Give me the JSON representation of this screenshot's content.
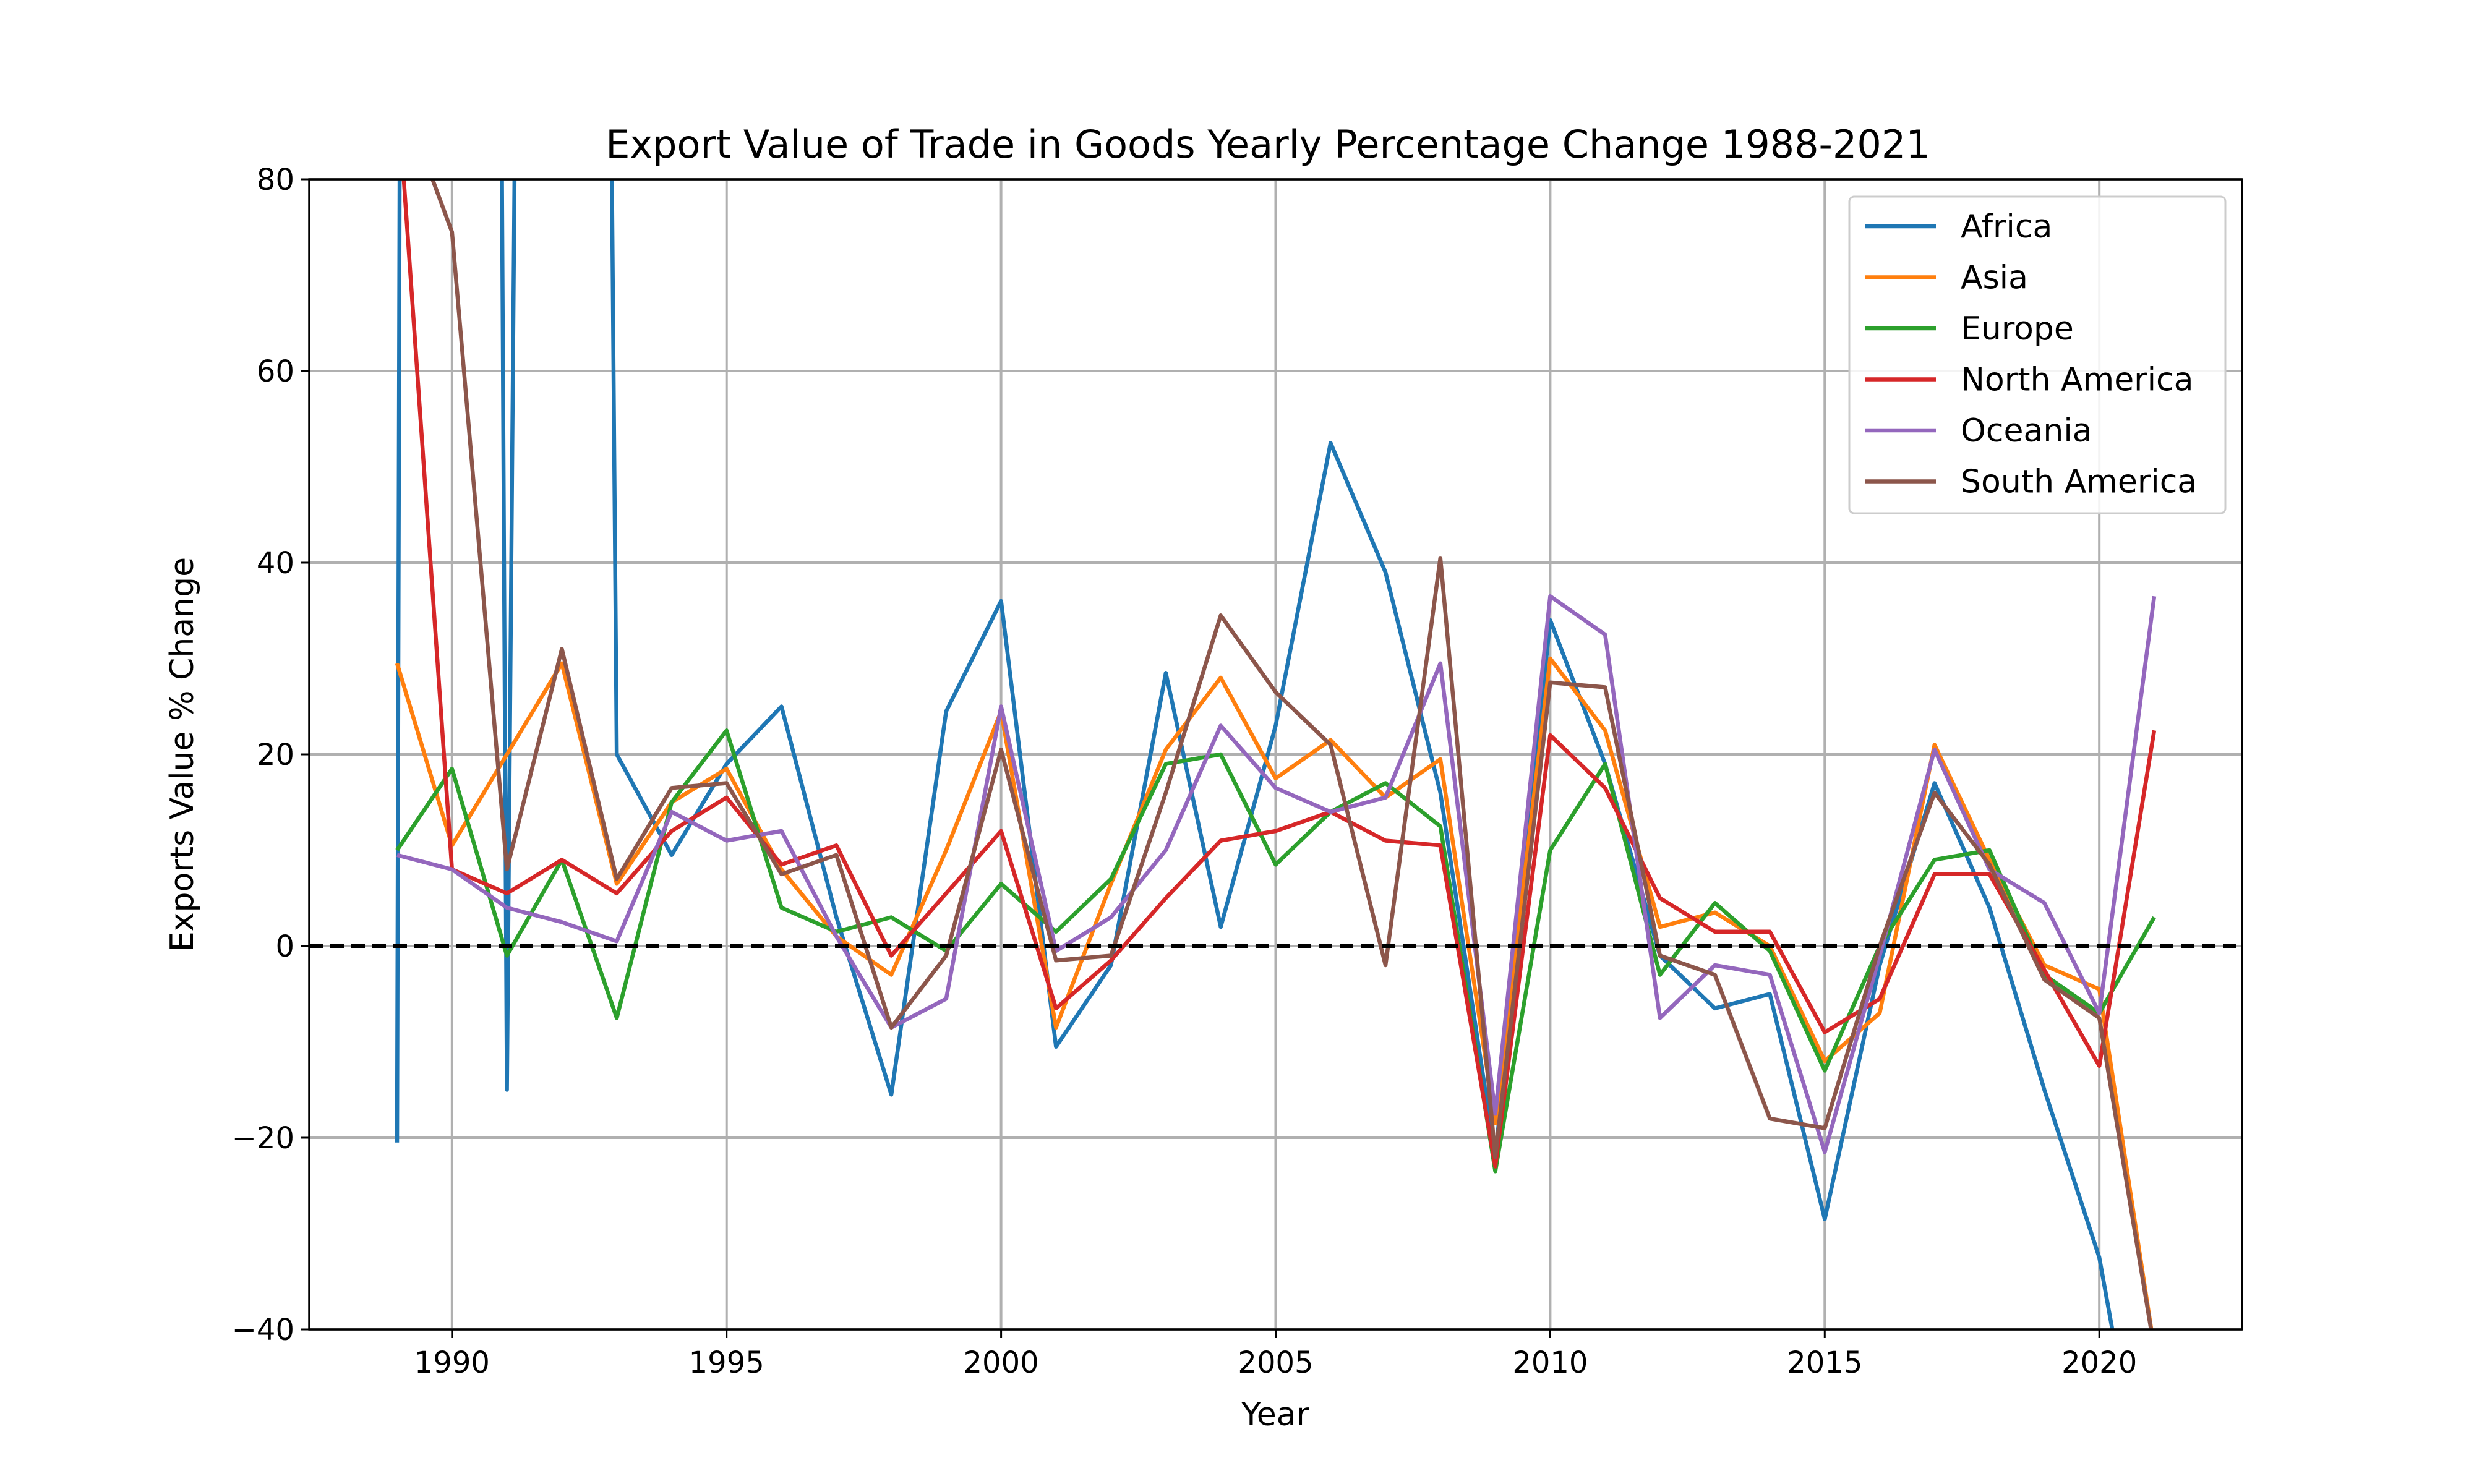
{
  "chart_data": {
    "type": "line",
    "title": "Export Value of Trade in Goods Yearly Percentage Change 1988-2021",
    "xlabel": "Year",
    "ylabel": "Exports Value % Change",
    "xlim": [
      1987.4,
      2022.6
    ],
    "ylim": [
      -40,
      80
    ],
    "xticks": [
      1990,
      1995,
      2000,
      2005,
      2010,
      2015,
      2020
    ],
    "yticks": [
      -40,
      -20,
      0,
      20,
      40,
      60,
      80
    ],
    "ytick_labels": [
      "−40",
      "−20",
      "0",
      "20",
      "40",
      "60",
      "80"
    ],
    "grid": true,
    "legend_position": "upper right",
    "reference_line": {
      "y": 0,
      "style": "dashed",
      "color": "#000000"
    },
    "x": [
      1989,
      1990,
      1991,
      1992,
      1993,
      1994,
      1995,
      1996,
      1997,
      1998,
      1999,
      2000,
      2001,
      2002,
      2003,
      2004,
      2005,
      2006,
      2007,
      2008,
      2009,
      2010,
      2011,
      2012,
      2013,
      2014,
      2015,
      2016,
      2017,
      2018,
      2019,
      2020,
      2021
    ],
    "series": [
      {
        "name": "Africa",
        "color": "#1f77b4",
        "x": [
          1989,
          1989.05,
          1990.9,
          1991.0,
          1991.15,
          1991.4,
          1992.7,
          1992.9,
          1993,
          1994,
          1995,
          1996,
          1997,
          1998,
          1999,
          2000,
          2001,
          2002,
          2003,
          2004,
          2005,
          2006,
          2007,
          2008,
          2009,
          2010,
          2011,
          2012,
          2013,
          2014,
          2015,
          2016,
          2017,
          2018,
          2019,
          2020,
          2020.3
        ],
        "values": [
          -20.5,
          90,
          90,
          -15,
          88,
          90,
          90,
          88,
          20,
          9.5,
          19,
          25,
          3,
          -15.5,
          24.5,
          36,
          -10.5,
          -2,
          28.5,
          2,
          23,
          52.5,
          39,
          16,
          -22,
          34,
          19,
          -1,
          -6.5,
          -5,
          -28.5,
          -2,
          17,
          4,
          -15,
          -32.5,
          -42
        ]
      },
      {
        "name": "Asia",
        "color": "#ff7f0e",
        "values": [
          29.5,
          10.5,
          20,
          29.5,
          6.5,
          15,
          18.5,
          8,
          1,
          -3,
          10,
          24.5,
          -8.5,
          6.5,
          20.5,
          28,
          17.5,
          21.5,
          15.5,
          19.5,
          -18.5,
          30,
          22.5,
          2,
          3.5,
          0,
          -12,
          -7,
          21,
          9,
          -2,
          -4.5,
          -42
        ]
      },
      {
        "name": "Europe",
        "color": "#2ca02c",
        "values": [
          10,
          18.5,
          -1,
          9,
          -7.5,
          15,
          22.5,
          4,
          1.5,
          3,
          -0.5,
          6.5,
          1.5,
          7,
          19,
          20,
          8.5,
          14,
          17,
          12.5,
          -23.5,
          10,
          19,
          -3,
          4.5,
          -0.5,
          -13,
          0,
          9,
          10,
          -3,
          -7,
          3
        ]
      },
      {
        "name": "North America",
        "color": "#d62728",
        "values": [
          90,
          8,
          5.5,
          9,
          5.5,
          12,
          15.5,
          8.5,
          10.5,
          -1,
          5.5,
          12,
          -6.5,
          -1.5,
          5,
          11,
          12,
          14,
          11,
          10.5,
          -23,
          22,
          16.5,
          5,
          1.5,
          1.5,
          -9,
          -5.5,
          7.5,
          7.5,
          -2.5,
          -12.5,
          22.5
        ]
      },
      {
        "name": "Oceania",
        "color": "#9467bd",
        "values": [
          9.5,
          8,
          4,
          2.5,
          0.5,
          14,
          11,
          12,
          1,
          -8.5,
          -5.5,
          25,
          -0.5,
          3,
          10,
          23,
          16.5,
          14,
          15.5,
          29.5,
          -17.5,
          36.5,
          32.5,
          -7.5,
          -2,
          -3,
          -21.5,
          -1,
          20.5,
          8,
          4.5,
          -7,
          36.5
        ]
      },
      {
        "name": "South America",
        "color": "#8c564b",
        "values": [
          90,
          74.5,
          8,
          31,
          7,
          16.5,
          17,
          7.5,
          9.5,
          -8.5,
          -1,
          20.5,
          -1.5,
          -1,
          16,
          34.5,
          26.5,
          21,
          -2,
          40.5,
          -22,
          27.5,
          27,
          -1,
          -3,
          -18,
          -19,
          0,
          16,
          8.5,
          -3.5,
          -7.5,
          -42
        ]
      }
    ]
  }
}
